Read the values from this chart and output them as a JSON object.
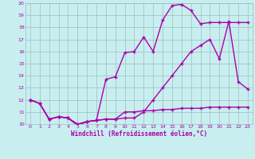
{
  "xlabel": "Windchill (Refroidissement éolien,°C)",
  "xlim": [
    -0.5,
    23.5
  ],
  "ylim": [
    10,
    20
  ],
  "xticks": [
    0,
    1,
    2,
    3,
    4,
    5,
    6,
    7,
    8,
    9,
    10,
    11,
    12,
    13,
    14,
    15,
    16,
    17,
    18,
    19,
    20,
    21,
    22,
    23
  ],
  "yticks": [
    10,
    11,
    12,
    13,
    14,
    15,
    16,
    17,
    18,
    19,
    20
  ],
  "bg_color": "#c8eef0",
  "line_color": "#aa00aa",
  "grid_color": "#9bbfbf",
  "line1_x": [
    0,
    1,
    2,
    3,
    4,
    5,
    6,
    7,
    8,
    9,
    10,
    11,
    12,
    13,
    14,
    15,
    16,
    17,
    18,
    19,
    20,
    21,
    22,
    23
  ],
  "line1_y": [
    12.0,
    11.7,
    10.4,
    10.6,
    10.5,
    9.9,
    10.2,
    10.3,
    13.7,
    13.9,
    15.9,
    16.0,
    17.2,
    16.0,
    18.6,
    19.8,
    19.9,
    19.4,
    18.3,
    18.4,
    18.4,
    18.4,
    18.4,
    18.4
  ],
  "line2_x": [
    0,
    1,
    2,
    3,
    4,
    5,
    6,
    7,
    8,
    9,
    10,
    11,
    12,
    13,
    14,
    15,
    16,
    17,
    18,
    19,
    20,
    21,
    22,
    23
  ],
  "line2_y": [
    12.0,
    11.7,
    10.4,
    10.6,
    10.5,
    9.9,
    10.2,
    10.3,
    10.4,
    10.4,
    10.5,
    10.5,
    11.0,
    12.0,
    13.0,
    14.0,
    15.0,
    16.0,
    16.5,
    17.0,
    15.4,
    18.5,
    13.5,
    12.9
  ],
  "line3_x": [
    0,
    1,
    2,
    3,
    4,
    5,
    6,
    7,
    8,
    9,
    10,
    11,
    12,
    13,
    14,
    15,
    16,
    17,
    18,
    19,
    20,
    21,
    22,
    23
  ],
  "line3_y": [
    12.0,
    11.7,
    10.4,
    10.6,
    10.5,
    10.0,
    10.2,
    10.3,
    10.4,
    10.4,
    11.0,
    11.0,
    11.1,
    11.1,
    11.2,
    11.2,
    11.3,
    11.3,
    11.3,
    11.4,
    11.4,
    11.4,
    11.4,
    11.4
  ]
}
